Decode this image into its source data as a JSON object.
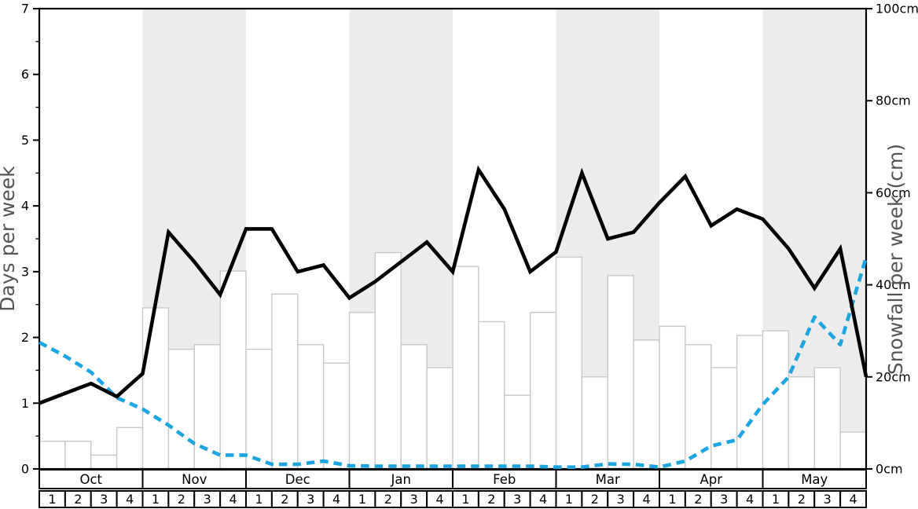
{
  "left_axis": {
    "label": "Days per week",
    "tick_labels": [
      "0",
      "1",
      "2",
      "3",
      "4",
      "5",
      "6",
      "7"
    ],
    "range": [
      0,
      7
    ],
    "minor_tick_step": 0.5
  },
  "right_axis": {
    "label": "Snowfall per week (cm)",
    "tick_labels": [
      "0cm",
      "20cm",
      "40cm",
      "60cm",
      "80cm",
      "100cm"
    ],
    "tick_values": [
      0,
      20,
      40,
      60,
      80,
      100
    ],
    "range": [
      0,
      100
    ]
  },
  "x_axis": {
    "months": [
      "Oct",
      "Nov",
      "Dec",
      "Jan",
      "Feb",
      "Mar",
      "Apr",
      "May"
    ],
    "week_labels": [
      "1",
      "2",
      "3",
      "4"
    ],
    "shaded_months": [
      "Nov",
      "Jan",
      "Mar",
      "May"
    ]
  },
  "colors": {
    "background": "#ffffff",
    "month_shading": "#ececec",
    "bar_fill": "#ffffff",
    "bar_border": "#c8c8c8",
    "days_line": "#000000",
    "snowfall_line": "#1ca5e0",
    "axis": "#000000",
    "axis_title_text": "#555555"
  },
  "chart_data": {
    "type": "bar+line combo, dual y-axes",
    "categories": [
      "Oct-1",
      "Oct-2",
      "Oct-3",
      "Oct-4",
      "Nov-1",
      "Nov-2",
      "Nov-3",
      "Nov-4",
      "Dec-1",
      "Dec-2",
      "Dec-3",
      "Dec-4",
      "Jan-1",
      "Jan-2",
      "Jan-3",
      "Jan-4",
      "Feb-1",
      "Feb-2",
      "Feb-3",
      "Feb-4",
      "Mar-1",
      "Mar-2",
      "Mar-3",
      "Mar-4",
      "Apr-1",
      "Apr-2",
      "Apr-3",
      "Apr-4",
      "May-1",
      "May-2",
      "May-3",
      "May-4"
    ],
    "series": [
      {
        "name": "snowfall-bars",
        "type": "bar",
        "axis": "right",
        "unit": "cm",
        "values": [
          6,
          6,
          3,
          9,
          35,
          26,
          27,
          43,
          26,
          38,
          27,
          23,
          34,
          47,
          27,
          22,
          44,
          32,
          16,
          34,
          46,
          20,
          42,
          28,
          31,
          27,
          22,
          29,
          30,
          20,
          22,
          8
        ]
      },
      {
        "name": "days-per-week-line",
        "type": "line",
        "style": "solid",
        "axis": "left",
        "unit": "days",
        "color": "#000000",
        "axis_start_value": 1.0,
        "values": [
          1.15,
          1.3,
          1.1,
          1.45,
          3.6,
          3.15,
          2.65,
          3.65,
          3.65,
          3.0,
          3.1,
          2.6,
          2.85,
          3.15,
          3.45,
          3.0,
          4.55,
          3.95,
          3.0,
          3.3,
          4.5,
          3.5,
          3.6,
          4.05,
          4.45,
          3.7,
          3.95,
          3.8,
          3.35,
          2.75,
          3.35,
          1.4
        ]
      },
      {
        "name": "snowfall-dashed-line",
        "type": "line",
        "style": "dashed",
        "axis": "right",
        "unit": "cm",
        "color": "#1ca5e0",
        "axis_start_value": 27.5,
        "values": [
          24.5,
          21,
          15.5,
          13,
          9.5,
          5.5,
          3,
          3,
          1,
          1,
          1.7,
          0.7,
          0.6,
          0.6,
          0.6,
          0.6,
          0.6,
          0.6,
          0.6,
          0.4,
          0.4,
          1.1,
          1.0,
          0.4,
          1.7,
          5,
          6.3,
          14,
          20,
          33,
          27,
          46
        ]
      }
    ],
    "layout_hints": {
      "grid": "off",
      "legend": "none",
      "alternating_month_bands": true
    }
  }
}
